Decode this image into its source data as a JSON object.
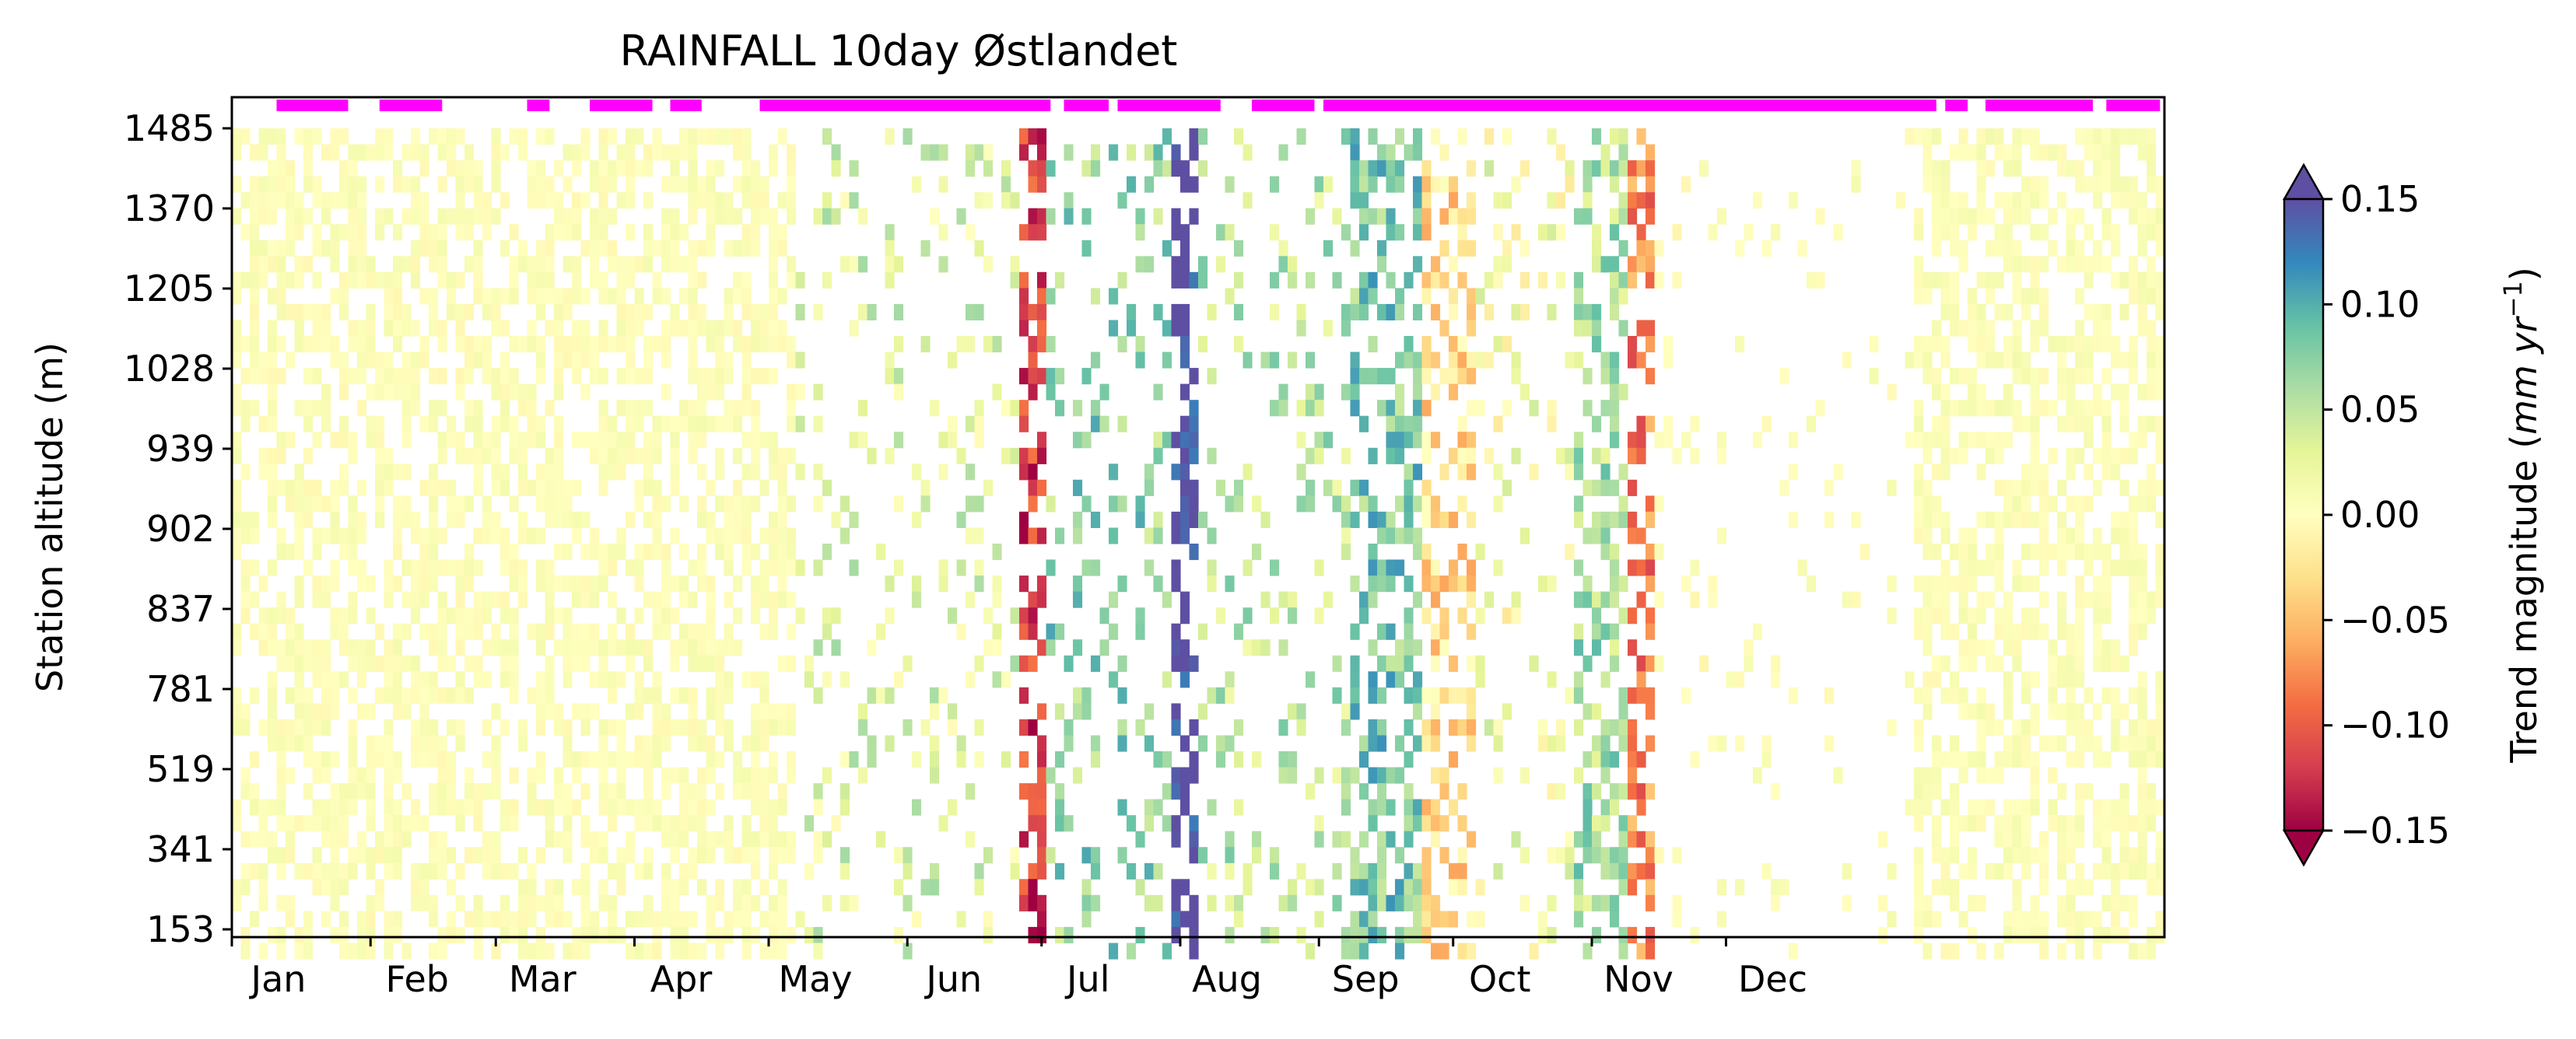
{
  "chart_data": {
    "type": "heatmap",
    "title": "RAINFALL 10day Østlandet",
    "ylabel": "Station altitude (m)",
    "xlabel": "",
    "x_tick_labels": [
      "Jan",
      "Feb",
      "Mar",
      "Apr",
      "May",
      "Jun",
      "Jul",
      "Aug",
      "Sep",
      "Oct",
      "Nov",
      "Dec"
    ],
    "y_tick_labels": [
      "1485",
      "1370",
      "1205",
      "1028",
      "939",
      "902",
      "837",
      "781",
      "519",
      "341",
      "153"
    ],
    "colorbar": {
      "label": "Trend magnitude (mm yr⁻¹)",
      "min": -0.15,
      "max": 0.15,
      "ticks": [
        "0.15",
        "0.10",
        "0.05",
        "0.00",
        "−0.05",
        "−0.10",
        "−0.15"
      ],
      "tick_values": [
        0.15,
        0.1,
        0.05,
        0.0,
        -0.05,
        -0.1,
        -0.15
      ],
      "extend": "both",
      "colormap": [
        "#9e0142",
        "#d53e4f",
        "#f46d43",
        "#fdae61",
        "#fee08b",
        "#ffffbf",
        "#e6f598",
        "#abdda4",
        "#66c2a5",
        "#3288bd",
        "#5e4fa2"
      ]
    },
    "significance_color": "#ff00ff",
    "significance_periods_doy": [
      [
        10,
        26
      ],
      [
        33,
        47
      ],
      [
        66,
        71
      ],
      [
        80,
        94
      ],
      [
        98,
        105
      ],
      [
        118,
        183
      ],
      [
        186,
        196
      ],
      [
        198,
        221
      ],
      [
        228,
        242
      ],
      [
        244,
        381
      ],
      [
        383,
        388
      ],
      [
        392,
        416
      ],
      [
        419,
        431
      ]
    ],
    "bands_doy": [
      [
        0,
        124,
        0.003
      ],
      [
        125,
        174,
        0.03
      ],
      [
        175,
        181,
        -0.12
      ],
      [
        182,
        209,
        0.07
      ],
      [
        210,
        214,
        0.16
      ],
      [
        215,
        249,
        0.05
      ],
      [
        250,
        265,
        0.08
      ],
      [
        266,
        276,
        -0.03
      ],
      [
        277,
        298,
        0.01
      ],
      [
        299,
        310,
        0.06
      ],
      [
        311,
        316,
        -0.08
      ],
      [
        317,
        330,
        0.0
      ],
      [
        331,
        431,
        0.004
      ]
    ]
  }
}
